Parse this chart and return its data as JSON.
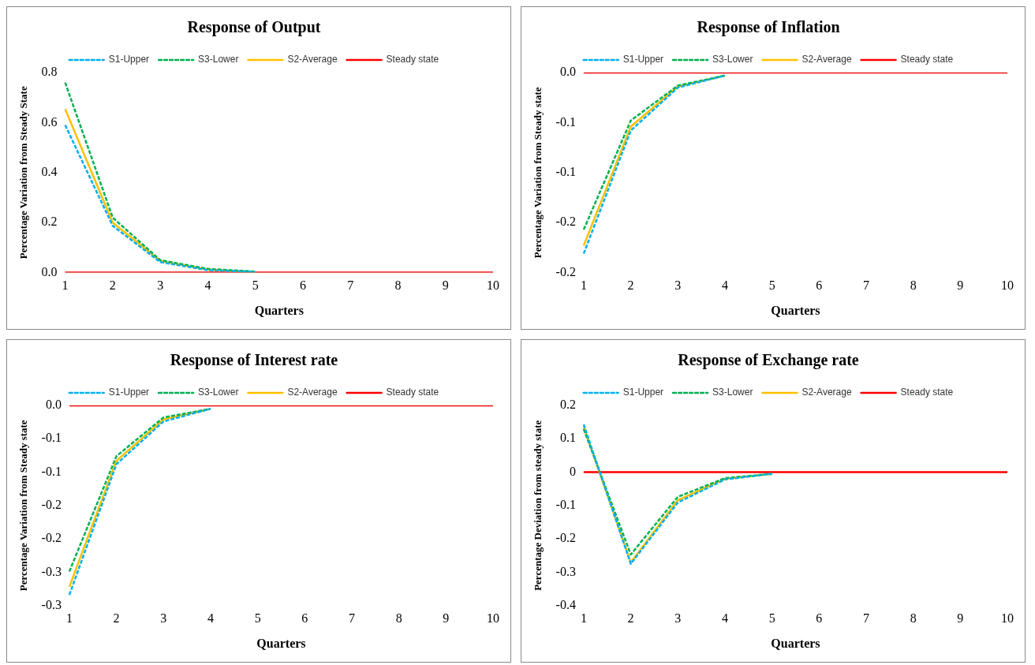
{
  "chart_data": [
    {
      "type": "line",
      "title": "Response of Output",
      "xlabel": "Quarters",
      "ylabel": "Percentage Variation from Steady State",
      "categories": [
        "1",
        "2",
        "3",
        "4",
        "5",
        "6",
        "7",
        "8",
        "9",
        "10"
      ],
      "ylim": [
        0,
        0.8
      ],
      "yticks": [
        {
          "value": 0,
          "label": "0.0"
        },
        0.2,
        0.4,
        0.6,
        0.8
      ],
      "legend": "top",
      "grid": false,
      "series": [
        {
          "name": "S1-Upper",
          "color": "#00b0f0",
          "line_style": "dashed",
          "values": [
            0.59,
            0.187,
            0.042,
            0.01,
            0.003,
            null,
            null,
            null,
            null,
            null
          ]
        },
        {
          "name": "S3-Lower",
          "color": "#00b050",
          "line_style": "dashed",
          "values": [
            0.76,
            0.22,
            0.05,
            0.015,
            0.004,
            null,
            null,
            null,
            null,
            null
          ]
        },
        {
          "name": "S2-Average",
          "color": "#ffc000",
          "line_style": "solid",
          "values": [
            0.654,
            0.2,
            0.047,
            0.012,
            0.003,
            null,
            null,
            null,
            null,
            null
          ]
        },
        {
          "name": "Steady state",
          "color": "#ff0000",
          "line_style": "solid",
          "values": [
            0,
            0,
            0,
            0,
            0,
            0,
            0,
            0,
            0,
            0
          ]
        }
      ]
    },
    {
      "type": "line",
      "title": "Response of Inflation",
      "xlabel": "Quarters",
      "ylabel": "Percentage Variation from Steady state",
      "categories": [
        "1",
        "2",
        "3",
        "4",
        "5",
        "6",
        "7",
        "8",
        "9",
        "10"
      ],
      "ylim": [
        -0.2,
        0
      ],
      "yticks": [
        {
          "value": 0,
          "label": "0.0"
        },
        {
          "value": -0.05,
          "label": "-0.1"
        },
        -0.1,
        {
          "value": -0.15,
          "label": "-0.2"
        },
        -0.2
      ],
      "legend": "top",
      "grid": false,
      "series": [
        {
          "name": "S1-Upper",
          "color": "#00b0f0",
          "line_style": "dashed",
          "values": [
            -0.181,
            -0.058,
            -0.015,
            -0.003,
            null,
            null,
            null,
            null,
            null,
            null
          ]
        },
        {
          "name": "S3-Lower",
          "color": "#00b050",
          "line_style": "dashed",
          "values": [
            -0.157,
            -0.048,
            -0.013,
            -0.003,
            null,
            null,
            null,
            null,
            null,
            null
          ]
        },
        {
          "name": "S2-Average",
          "color": "#ffc000",
          "line_style": "solid",
          "values": [
            -0.173,
            -0.054,
            -0.014,
            -0.003,
            null,
            null,
            null,
            null,
            null,
            null
          ]
        },
        {
          "name": "Steady state",
          "color": "#ff0000",
          "line_style": "solid",
          "values": [
            0,
            0,
            0,
            0,
            0,
            0,
            0,
            0,
            0,
            0
          ]
        }
      ]
    },
    {
      "type": "line",
      "title": "Response of Interest rate",
      "xlabel": "Quarters",
      "ylabel": "Percentage Variation from Steady state",
      "categories": [
        "1",
        "2",
        "3",
        "4",
        "5",
        "6",
        "7",
        "8",
        "9",
        "10"
      ],
      "ylim": [
        -0.3,
        0
      ],
      "yticks": [
        {
          "value": 0,
          "label": "0.0"
        },
        {
          "value": -0.05,
          "label": "-0.1"
        },
        -0.1,
        {
          "value": -0.15,
          "label": "-0.2"
        },
        -0.2,
        {
          "value": -0.25,
          "label": "-0.3"
        },
        -0.3
      ],
      "legend": "top",
      "grid": false,
      "series": [
        {
          "name": "S1-Upper",
          "color": "#00b0f0",
          "line_style": "dashed",
          "values": [
            -0.284,
            -0.088,
            -0.024,
            -0.005,
            null,
            null,
            null,
            null,
            null,
            null
          ]
        },
        {
          "name": "S3-Lower",
          "color": "#00b050",
          "line_style": "dashed",
          "values": [
            -0.249,
            -0.076,
            -0.018,
            -0.005,
            null,
            null,
            null,
            null,
            null,
            null
          ]
        },
        {
          "name": "S2-Average",
          "color": "#ffc000",
          "line_style": "solid",
          "values": [
            -0.272,
            -0.083,
            -0.021,
            -0.005,
            null,
            null,
            null,
            null,
            null,
            null
          ]
        },
        {
          "name": "Steady state",
          "color": "#ff0000",
          "line_style": "solid",
          "values": [
            0,
            0,
            0,
            0,
            0,
            0,
            0,
            0,
            0,
            0
          ]
        }
      ]
    },
    {
      "type": "line",
      "title": "Response of Exchange rate",
      "xlabel": "Quarters",
      "ylabel": "Percentage Deviation from steady state",
      "categories": [
        "1",
        "2",
        "3",
        "4",
        "5",
        "6",
        "7",
        "8",
        "9",
        "10"
      ],
      "ylim": [
        -0.4,
        0.2
      ],
      "yticks": [
        0.2,
        0.1,
        0,
        -0.1,
        -0.2,
        -0.3,
        -0.4
      ],
      "legend": "top",
      "grid": false,
      "series": [
        {
          "name": "S1-Upper",
          "color": "#00b0f0",
          "line_style": "dashed",
          "values": [
            0.143,
            -0.275,
            -0.091,
            -0.022,
            -0.005,
            null,
            null,
            null,
            null,
            null
          ]
        },
        {
          "name": "S3-Lower",
          "color": "#00b050",
          "line_style": "dashed",
          "values": [
            0.129,
            -0.247,
            -0.074,
            -0.018,
            -0.005,
            null,
            null,
            null,
            null,
            null
          ]
        },
        {
          "name": "S2-Average",
          "color": "#ffc000",
          "line_style": "solid",
          "values": [
            0.136,
            -0.271,
            -0.084,
            -0.02,
            -0.005,
            null,
            null,
            null,
            null,
            null
          ]
        },
        {
          "name": "Steady state",
          "color": "#ff0000",
          "line_style": "solid",
          "values": [
            0,
            0,
            0,
            0,
            0,
            0,
            0,
            0,
            0,
            0
          ]
        }
      ]
    }
  ]
}
